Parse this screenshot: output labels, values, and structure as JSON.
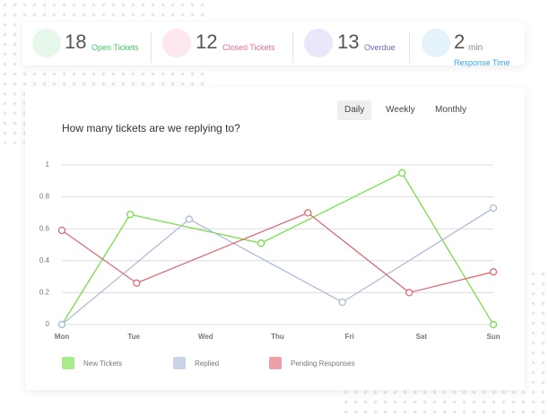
{
  "stats": [
    {
      "value": 18,
      "label": "Open Tickets"
    },
    {
      "value": 12,
      "label": "Closed Tickets"
    },
    {
      "value": 13,
      "label": "Overdue"
    },
    {
      "value": 2,
      "unit": "min",
      "label": "Response Time"
    }
  ],
  "tabs": [
    "Daily",
    "Weekly",
    "Monthly"
  ],
  "chart_data": {
    "type": "line",
    "title": "How many tickets are we replying to?",
    "xlim": [
      0,
      6
    ],
    "xticks": [
      {
        "value": 0,
        "label": "Mon"
      },
      {
        "value": 1,
        "label": "Tue"
      },
      {
        "value": 2,
        "label": "Wed"
      },
      {
        "value": 3,
        "label": "Thu"
      },
      {
        "value": 4,
        "label": "Fri"
      },
      {
        "value": 5,
        "label": "Sat"
      },
      {
        "value": 6,
        "label": "Sun"
      }
    ],
    "ylim": [
      0,
      1
    ],
    "yticks": [
      0,
      0.2,
      0.4,
      0.6,
      0.8,
      1
    ],
    "grid": true,
    "series": [
      {
        "name": "New Tickets",
        "color": "#6fdc3c",
        "x": [
          0,
          0.95,
          2.77,
          4.73,
          6
        ],
        "values": [
          0,
          0.69,
          0.51,
          0.95,
          0
        ]
      },
      {
        "name": "Replied",
        "color": "#a9b8d6",
        "x": [
          0,
          1.77,
          3.9,
          6
        ],
        "values": [
          0,
          0.66,
          0.14,
          0.73
        ]
      },
      {
        "name": "Pending Responses",
        "color": "#e0606c",
        "x": [
          0,
          1.04,
          3.42,
          4.83,
          6
        ],
        "values": [
          0.59,
          0.26,
          0.7,
          0.2,
          0.33
        ]
      }
    ]
  }
}
